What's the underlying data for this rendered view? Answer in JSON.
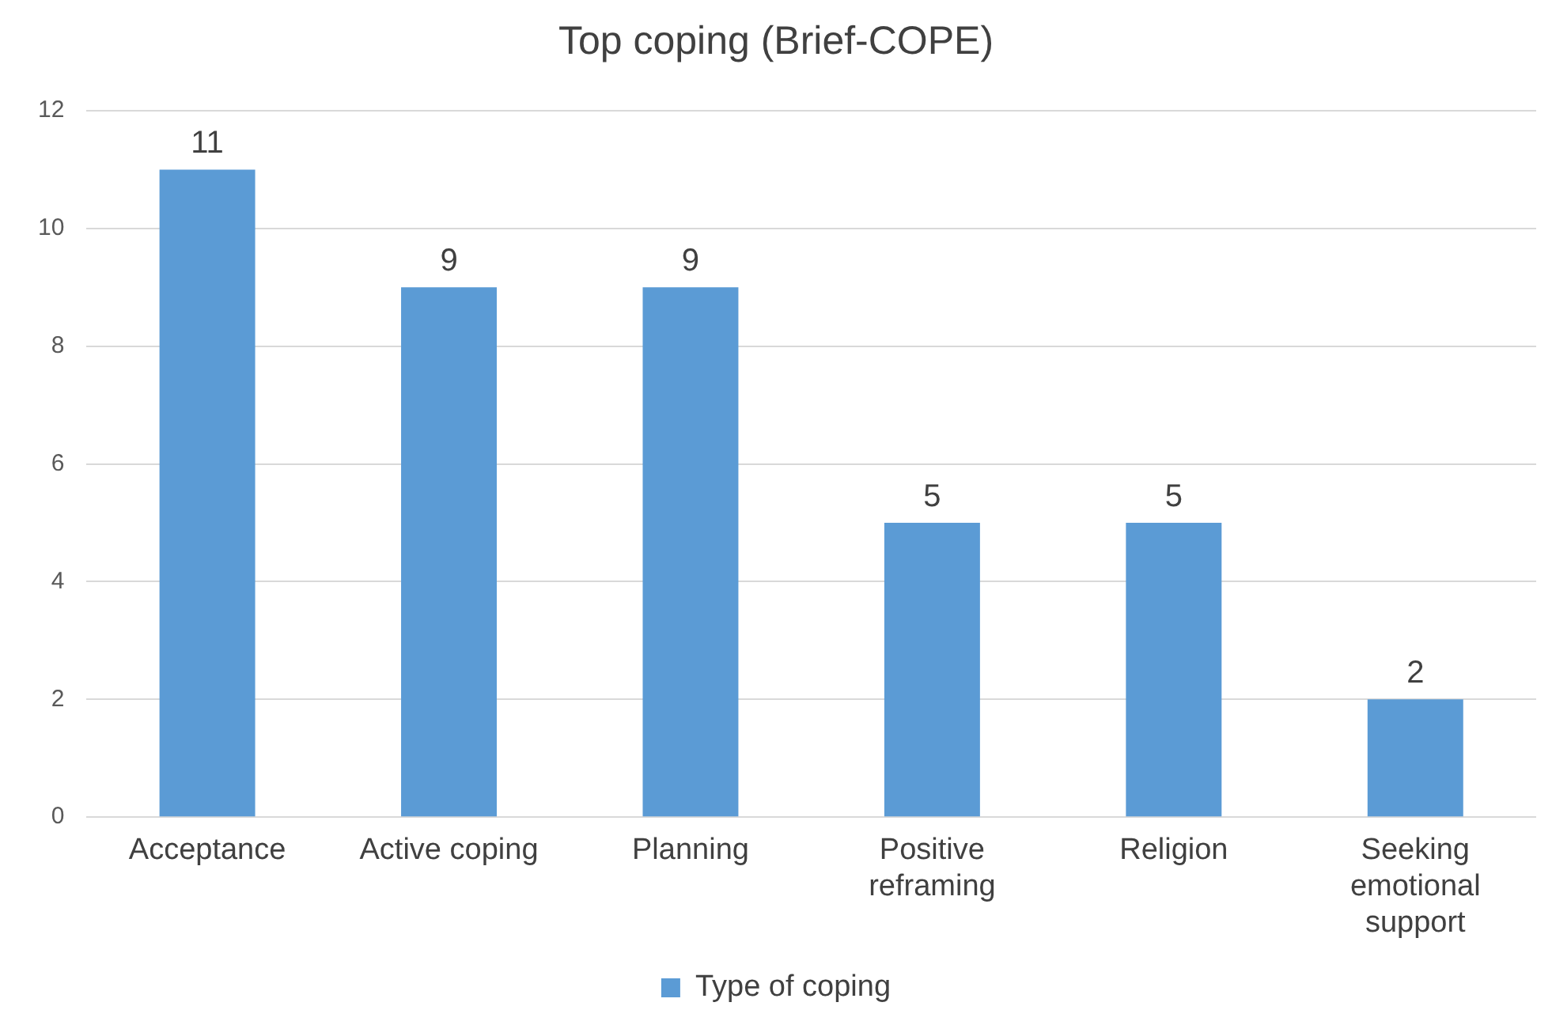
{
  "chart_data": {
    "type": "bar",
    "title": "Top coping (Brief-COPE)",
    "categories": [
      "Acceptance",
      "Active coping",
      "Planning",
      "Positive reframing",
      "Religion",
      "Seeking emotional support"
    ],
    "series": [
      {
        "name": "Type of coping",
        "color": "#5b9bd5",
        "values": [
          11,
          9,
          9,
          5,
          5,
          2
        ]
      }
    ],
    "ylim": [
      0,
      12
    ],
    "yticks": [
      0,
      2,
      4,
      6,
      8,
      10,
      12
    ],
    "grid": "y",
    "legend": "bottom",
    "data_labels": true
  }
}
